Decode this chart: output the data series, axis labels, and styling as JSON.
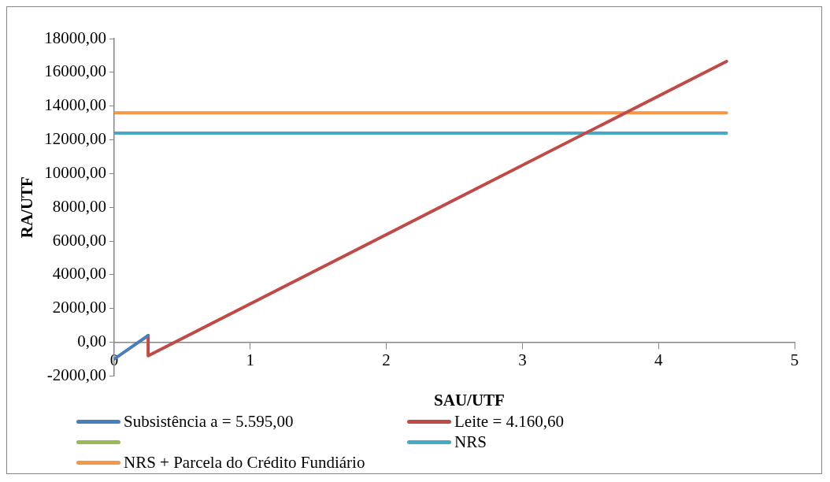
{
  "chart_data": {
    "type": "line",
    "xlabel": "SAU/UTF",
    "ylabel": "RA/UTF",
    "xlim": [
      0,
      5
    ],
    "xticks": [
      0,
      1,
      2,
      3,
      4,
      5
    ],
    "ylim": [
      -2000,
      18000
    ],
    "yticks": [
      {
        "value": -2000,
        "label": "-2000,00"
      },
      {
        "value": 0,
        "label": "0,00"
      },
      {
        "value": 2000,
        "label": "2000,00"
      },
      {
        "value": 4000,
        "label": "4000,00"
      },
      {
        "value": 6000,
        "label": "6000,00"
      },
      {
        "value": 8000,
        "label": "8000,00"
      },
      {
        "value": 10000,
        "label": "10000,00"
      },
      {
        "value": 12000,
        "label": "12000,00"
      },
      {
        "value": 14000,
        "label": "14000,00"
      },
      {
        "value": 16000,
        "label": "16000,00"
      },
      {
        "value": 18000,
        "label": "18000,00"
      }
    ],
    "grid": false,
    "legend": "bottom",
    "marker": "none",
    "line_style": "solid",
    "series": [
      {
        "name": "Subsistência a = 5.595,00",
        "color": "#4a7ebb",
        "x": [
          0,
          0.25
        ],
        "values": [
          -1000,
          400
        ]
      },
      {
        "name": "Leite = 4.160,60",
        "color": "#be4b48",
        "x": [
          0.25,
          0.25,
          4.5
        ],
        "values": [
          400,
          -800,
          16650
        ]
      },
      {
        "color": "#98b954"
      },
      {
        "name": "NRS",
        "color": "#46aac5",
        "x": [
          0,
          4.5
        ],
        "values": [
          12400,
          12400
        ]
      },
      {
        "name": "NRS + Parcela do Crédito Fundiário",
        "color": "#f79646",
        "x": [
          0,
          4.5
        ],
        "values": [
          13600,
          13600
        ]
      }
    ]
  }
}
